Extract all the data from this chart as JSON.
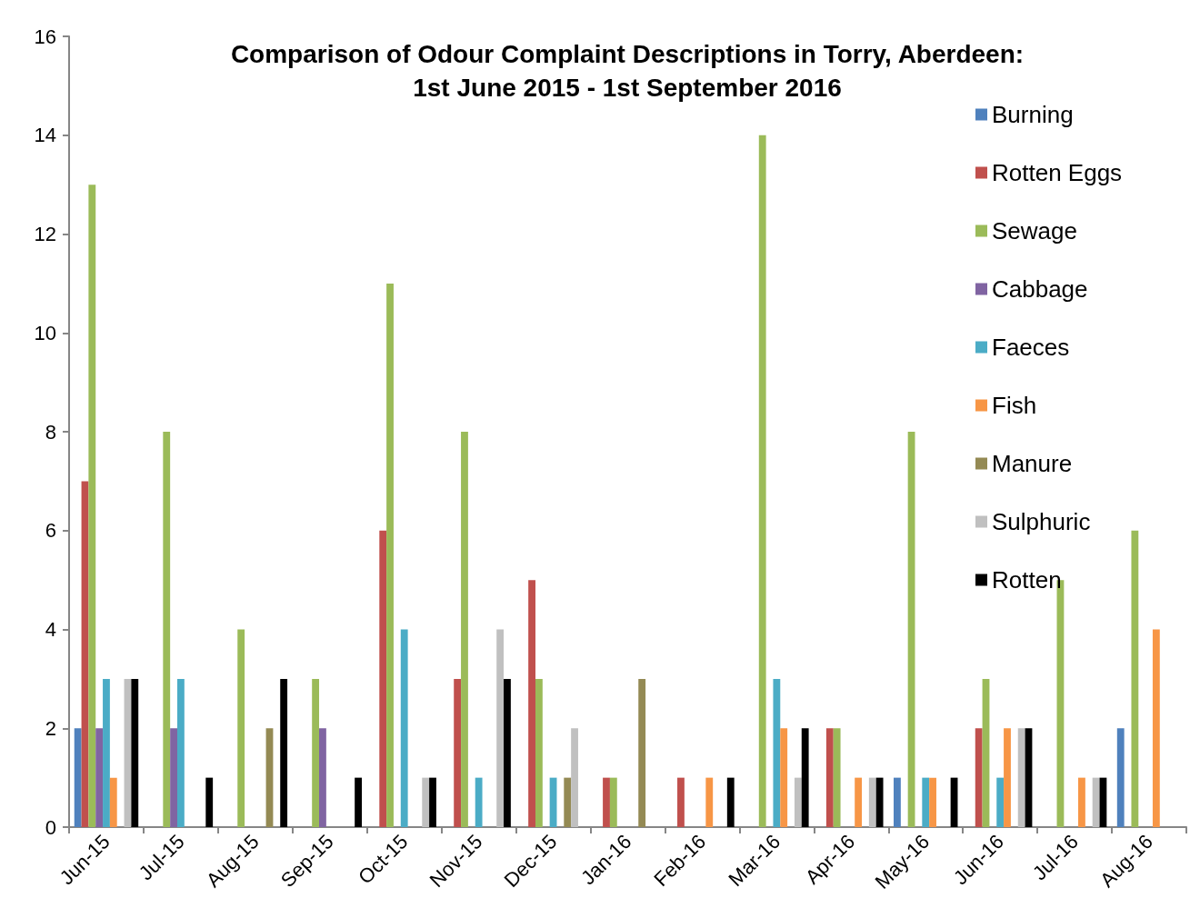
{
  "chart_data": {
    "type": "bar",
    "title": "Comparison of Odour Complaint Descriptions in Torry, Aberdeen:\n1st June 2015 - 1st September 2016",
    "categories": [
      "Jun-15",
      "Jul-15",
      "Aug-15",
      "Sep-15",
      "Oct-15",
      "Nov-15",
      "Dec-15",
      "Jan-16",
      "Feb-16",
      "Mar-16",
      "Apr-16",
      "May-16",
      "Jun-16",
      "Jul-16",
      "Aug-16"
    ],
    "series": [
      {
        "name": "Burning",
        "color": "#4f81bd",
        "values": [
          2,
          0,
          0,
          0,
          0,
          0,
          0,
          0,
          0,
          0,
          0,
          1,
          0,
          0,
          2
        ]
      },
      {
        "name": "Rotten Eggs",
        "color": "#c0504d",
        "values": [
          7,
          0,
          0,
          0,
          6,
          3,
          5,
          1,
          1,
          0,
          2,
          0,
          2,
          0,
          0
        ]
      },
      {
        "name": "Sewage",
        "color": "#9bbb59",
        "values": [
          13,
          8,
          4,
          3,
          11,
          8,
          3,
          1,
          0,
          14,
          2,
          8,
          3,
          5,
          6
        ]
      },
      {
        "name": "Cabbage",
        "color": "#8064a2",
        "values": [
          2,
          2,
          0,
          2,
          0,
          0,
          0,
          0,
          0,
          0,
          0,
          0,
          0,
          0,
          0
        ]
      },
      {
        "name": "Faeces",
        "color": "#4bacc6",
        "values": [
          3,
          3,
          0,
          0,
          4,
          1,
          1,
          0,
          0,
          3,
          0,
          1,
          1,
          0,
          0
        ]
      },
      {
        "name": "Fish",
        "color": "#f79646",
        "values": [
          1,
          0,
          0,
          0,
          0,
          0,
          0,
          0,
          1,
          2,
          1,
          1,
          2,
          1,
          4
        ]
      },
      {
        "name": "Manure",
        "color": "#948a54",
        "values": [
          0,
          0,
          2,
          0,
          0,
          0,
          1,
          3,
          0,
          0,
          0,
          0,
          0,
          0,
          0
        ]
      },
      {
        "name": "Sulphuric",
        "color": "#c0c0c0",
        "values": [
          3,
          0,
          0,
          0,
          1,
          4,
          2,
          0,
          0,
          1,
          1,
          0,
          2,
          1,
          0
        ]
      },
      {
        "name": "Rotten",
        "color": "#000000",
        "values": [
          3,
          1,
          3,
          1,
          1,
          3,
          0,
          0,
          1,
          2,
          1,
          1,
          2,
          1,
          0
        ]
      }
    ],
    "ylim": [
      0,
      16
    ],
    "yticks": [
      0,
      2,
      4,
      6,
      8,
      10,
      12,
      14,
      16
    ],
    "grid": false,
    "legend": "top right"
  }
}
